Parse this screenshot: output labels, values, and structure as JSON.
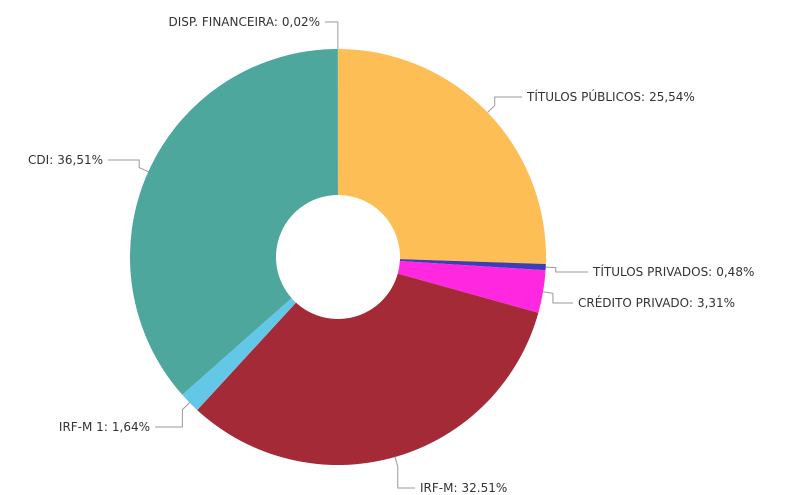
{
  "chart_data": {
    "type": "donut",
    "categories": [
      "TÍTULOS PÚBLICOS:",
      "TÍTULOS PRIVADOS:",
      "CRÉDITO PRIVADO:",
      "IRF-M:",
      "IRF-M 1:",
      "CDI:",
      "DISP. FINANCEIRA:"
    ],
    "values": [
      25.54,
      0.48,
      3.31,
      32.51,
      1.64,
      36.51,
      0.02
    ],
    "value_labels": [
      "25,54%",
      "0,48%",
      "3,31%",
      "32.51%",
      "1,64%",
      "36,51%",
      "0,02%"
    ],
    "colors": [
      "#fdbe55",
      "#3a3fb8",
      "#ff28e0",
      "#a52a38",
      "#63c8e8",
      "#4da79c",
      "#4da79c"
    ]
  }
}
